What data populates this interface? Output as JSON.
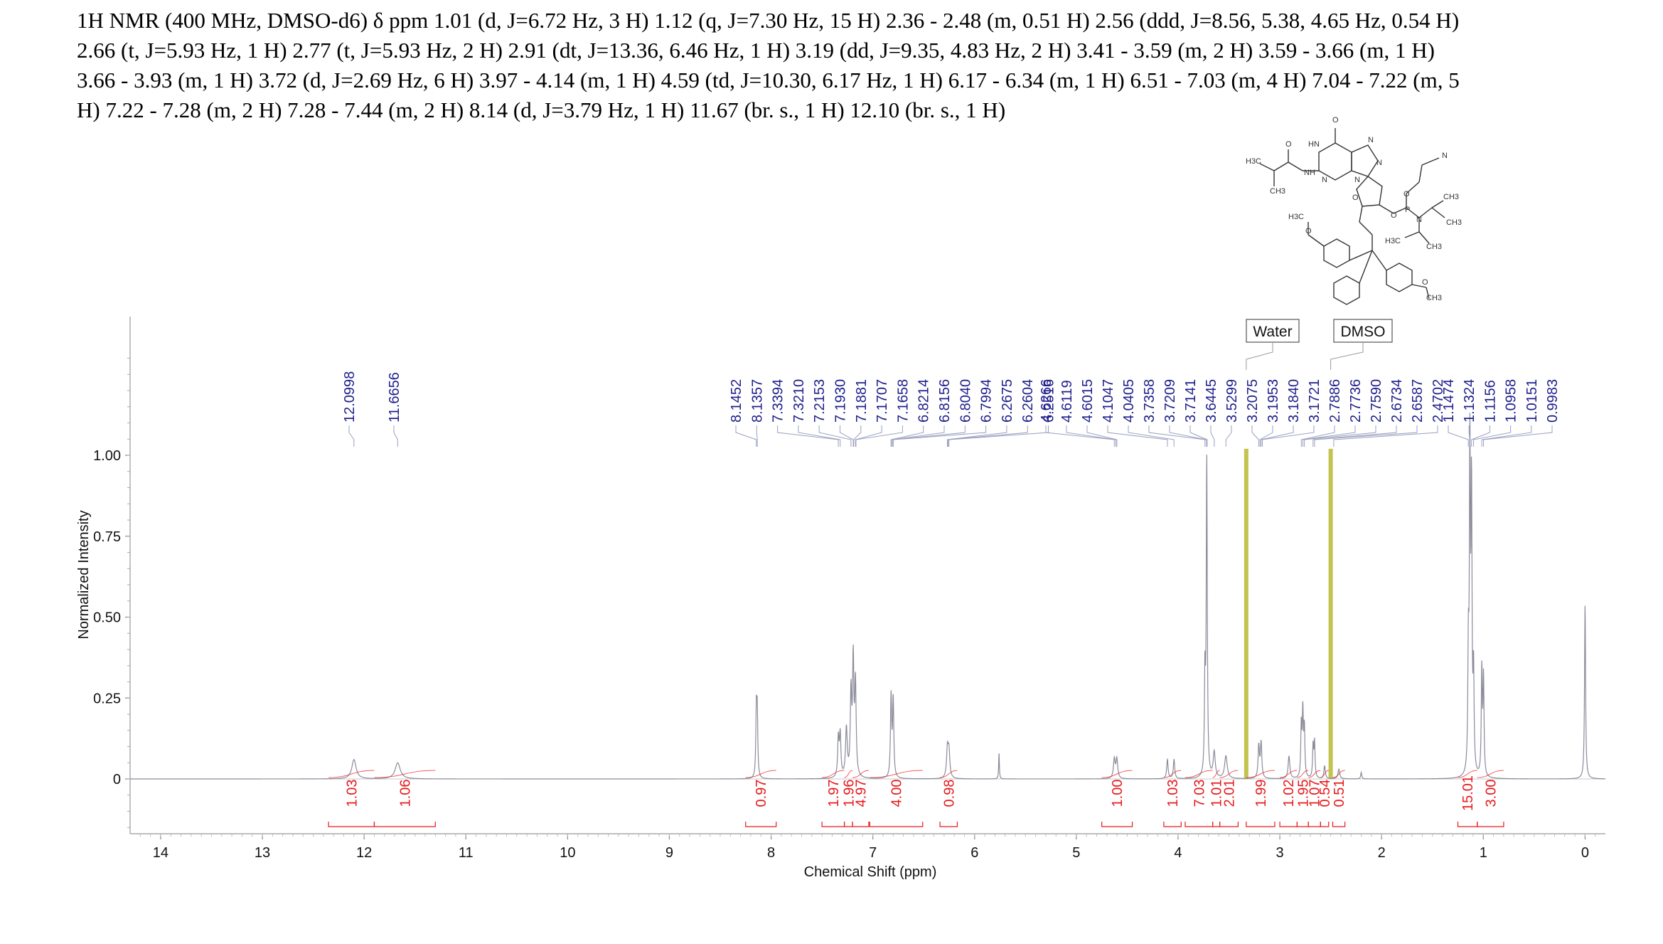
{
  "header": {
    "lines": [
      "1H NMR (400 MHz, DMSO-d6) δ ppm 1.01 (d, J=6.72 Hz, 3 H) 1.12 (q, J=7.30 Hz, 15 H) 2.36 - 2.48 (m, 0.51 H) 2.56 (ddd, J=8.56, 5.38, 4.65 Hz, 0.54 H)",
      "2.66 (t, J=5.93 Hz, 1 H) 2.77 (t, J=5.93 Hz, 2 H) 2.91 (dt, J=13.36, 6.46 Hz, 1 H) 3.19 (dd, J=9.35, 4.83 Hz, 2 H) 3.41 - 3.59 (m, 2 H) 3.59 - 3.66 (m, 1 H)",
      "3.66 - 3.93 (m, 1 H) 3.72 (d, J=2.69 Hz, 6 H) 3.97 - 4.14 (m, 1 H) 4.59 (td, J=10.30, 6.17 Hz, 1 H) 6.17 - 6.34 (m, 1 H) 6.51 - 7.03 (m, 4 H) 7.04 - 7.22 (m, 5",
      "H) 7.22 - 7.28 (m, 2 H) 7.28 - 7.44 (m, 2 H) 8.14 (d, J=3.79 Hz, 1 H) 11.67 (br. s., 1 H) 12.10 (br. s., 1 H)"
    ]
  },
  "structure": {
    "labels": [
      "O",
      "HN",
      "N",
      "N",
      "N",
      "N",
      "H3C",
      "O",
      "NH",
      "CH3",
      "O",
      "O",
      "P",
      "O",
      "N",
      "CH3",
      "CH3",
      "H3C",
      "CH3",
      "H3C",
      "O",
      "O",
      "CH3",
      "N"
    ]
  },
  "solvent_labels": {
    "water": "Water",
    "dmso": "DMSO"
  },
  "colors": {
    "spectrum": "#8a8a9a",
    "peak_labels": "#1f1f8c",
    "integrals": "#e8191c",
    "solvent_lines": "#b8b830"
  },
  "chart_data": {
    "type": "line",
    "title": "",
    "xlabel": "Chemical Shift (ppm)",
    "ylabel": "Normalized Intensity",
    "xlim": [
      14.3,
      -0.2
    ],
    "x_reversed": true,
    "ylim": [
      -0.18,
      1.42
    ],
    "x_ticks": [
      14,
      13,
      12,
      11,
      10,
      9,
      8,
      7,
      6,
      5,
      4,
      3,
      2,
      1,
      0
    ],
    "y_ticks": [
      0,
      0.25,
      0.5,
      0.75,
      1.0
    ],
    "y_tick_labels": [
      "0",
      "0.25",
      "0.50",
      "0.75",
      "1.00"
    ],
    "peak_labels_upfield_group": [
      "4.6266",
      "4.6119",
      "4.6015",
      "4.1047",
      "4.0405",
      "3.7358",
      "3.7209",
      "3.7141",
      "3.6445",
      "3.5299",
      "3.2075",
      "3.1953",
      "3.1840",
      "3.1721",
      "2.7886",
      "2.7736",
      "2.7590",
      "2.6734",
      "2.6587",
      "2.4702"
    ],
    "peak_labels": [
      {
        "group": "a",
        "text": "12.0998",
        "ppm": 12.1
      },
      {
        "group": "a",
        "text": "11.6656",
        "ppm": 11.67
      },
      {
        "group": "b",
        "text": "8.1452",
        "ppm": 8.1452
      },
      {
        "group": "b",
        "text": "8.1357",
        "ppm": 8.1357
      },
      {
        "group": "b",
        "text": "7.3394",
        "ppm": 7.3394
      },
      {
        "group": "b",
        "text": "7.3210",
        "ppm": 7.321
      },
      {
        "group": "b",
        "text": "7.2153",
        "ppm": 7.2153
      },
      {
        "group": "b",
        "text": "7.1930",
        "ppm": 7.193
      },
      {
        "group": "b",
        "text": "7.1881",
        "ppm": 7.1881
      },
      {
        "group": "b",
        "text": "7.1707",
        "ppm": 7.1707
      },
      {
        "group": "b",
        "text": "7.1658",
        "ppm": 7.1658
      },
      {
        "group": "b",
        "text": "6.8214",
        "ppm": 6.8214
      },
      {
        "group": "b",
        "text": "6.8156",
        "ppm": 6.8156
      },
      {
        "group": "b",
        "text": "6.8040",
        "ppm": 6.804
      },
      {
        "group": "b",
        "text": "6.7994",
        "ppm": 6.7994
      },
      {
        "group": "b",
        "text": "6.2675",
        "ppm": 6.2675
      },
      {
        "group": "b",
        "text": "6.2604",
        "ppm": 6.2604
      },
      {
        "group": "b",
        "text": "6.2516",
        "ppm": 6.2516
      },
      {
        "group": "c",
        "text": "4.6266",
        "ppm": 4.6266
      },
      {
        "group": "c",
        "text": "4.6119",
        "ppm": 4.6119
      },
      {
        "group": "c",
        "text": "4.6015",
        "ppm": 4.6015
      },
      {
        "group": "c",
        "text": "4.1047",
        "ppm": 4.1047
      },
      {
        "group": "c",
        "text": "4.0405",
        "ppm": 4.0405
      },
      {
        "group": "c",
        "text": "3.7358",
        "ppm": 3.7358
      },
      {
        "group": "c",
        "text": "3.7209",
        "ppm": 3.7209
      },
      {
        "group": "c",
        "text": "3.7141",
        "ppm": 3.7141
      },
      {
        "group": "c",
        "text": "3.6445",
        "ppm": 3.6445
      },
      {
        "group": "c",
        "text": "3.5299",
        "ppm": 3.5299
      },
      {
        "group": "c",
        "text": "3.2075",
        "ppm": 3.2075
      },
      {
        "group": "c",
        "text": "3.1953",
        "ppm": 3.1953
      },
      {
        "group": "c",
        "text": "3.1840",
        "ppm": 3.184
      },
      {
        "group": "c",
        "text": "3.1721",
        "ppm": 3.1721
      },
      {
        "group": "c",
        "text": "2.7886",
        "ppm": 2.7886
      },
      {
        "group": "c",
        "text": "2.7736",
        "ppm": 2.7736
      },
      {
        "group": "c",
        "text": "2.7590",
        "ppm": 2.759
      },
      {
        "group": "c",
        "text": "2.6734",
        "ppm": 2.6734
      },
      {
        "group": "c",
        "text": "2.6587",
        "ppm": 2.6587
      },
      {
        "group": "c",
        "text": "2.4702",
        "ppm": 2.4702
      },
      {
        "group": "d",
        "text": "1.1474",
        "ppm": 1.1474
      },
      {
        "group": "d",
        "text": "1.1324",
        "ppm": 1.1324
      },
      {
        "group": "d",
        "text": "1.1156",
        "ppm": 1.1156
      },
      {
        "group": "d",
        "text": "1.0958",
        "ppm": 1.0958
      },
      {
        "group": "d",
        "text": "1.0151",
        "ppm": 1.0151
      },
      {
        "group": "d",
        "text": "0.9983",
        "ppm": 0.9983
      }
    ],
    "integrals": [
      {
        "value": "1.03",
        "from": 12.35,
        "to": 11.9
      },
      {
        "value": "1.06",
        "from": 11.9,
        "to": 11.3
      },
      {
        "value": "0.97",
        "from": 8.25,
        "to": 7.95
      },
      {
        "value": "1.97",
        "from": 7.5,
        "to": 7.28
      },
      {
        "value": "1.96",
        "from": 7.28,
        "to": 7.2
      },
      {
        "value": "4.97",
        "from": 7.2,
        "to": 7.04
      },
      {
        "value": "4.00",
        "from": 7.03,
        "to": 6.51
      },
      {
        "value": "0.98",
        "from": 6.34,
        "to": 6.17
      },
      {
        "value": "1.00",
        "from": 4.75,
        "to": 4.45
      },
      {
        "value": "1.03",
        "from": 4.14,
        "to": 3.97
      },
      {
        "value": "7.03",
        "from": 3.93,
        "to": 3.66
      },
      {
        "value": "1.01",
        "from": 3.66,
        "to": 3.59
      },
      {
        "value": "2.01",
        "from": 3.59,
        "to": 3.41
      },
      {
        "value": "1.99",
        "from": 3.33,
        "to": 3.05
      },
      {
        "value": "1.02",
        "from": 3.0,
        "to": 2.83
      },
      {
        "value": "1.95",
        "from": 2.83,
        "to": 2.72
      },
      {
        "value": "1.07",
        "from": 2.72,
        "to": 2.6
      },
      {
        "value": "0.54",
        "from": 2.6,
        "to": 2.52
      },
      {
        "value": "0.51",
        "from": 2.48,
        "to": 2.36
      },
      {
        "value": "15.01",
        "from": 1.25,
        "to": 1.06
      },
      {
        "value": "3.00",
        "from": 1.06,
        "to": 0.8
      }
    ],
    "solvent_peaks": [
      {
        "name": "Water",
        "ppm": 3.33
      },
      {
        "name": "DMSO",
        "ppm": 2.5
      }
    ],
    "peaks": [
      {
        "ppm": 12.1,
        "height": 0.06,
        "width": 0.025
      },
      {
        "ppm": 11.67,
        "height": 0.05,
        "width": 0.03
      },
      {
        "ppm": 8.145,
        "height": 0.2,
        "width": 0.006
      },
      {
        "ppm": 8.136,
        "height": 0.19,
        "width": 0.006
      },
      {
        "ppm": 7.339,
        "height": 0.12,
        "width": 0.008
      },
      {
        "ppm": 7.321,
        "height": 0.13,
        "width": 0.008
      },
      {
        "ppm": 7.26,
        "height": 0.15,
        "width": 0.01
      },
      {
        "ppm": 7.215,
        "height": 0.25,
        "width": 0.008
      },
      {
        "ppm": 7.193,
        "height": 0.35,
        "width": 0.008
      },
      {
        "ppm": 7.171,
        "height": 0.28,
        "width": 0.008
      },
      {
        "ppm": 6.821,
        "height": 0.25,
        "width": 0.007
      },
      {
        "ppm": 6.8,
        "height": 0.24,
        "width": 0.007
      },
      {
        "ppm": 6.267,
        "height": 0.09,
        "width": 0.01
      },
      {
        "ppm": 6.252,
        "height": 0.08,
        "width": 0.01
      },
      {
        "ppm": 5.76,
        "height": 0.08,
        "width": 0.004
      },
      {
        "ppm": 4.627,
        "height": 0.06,
        "width": 0.01
      },
      {
        "ppm": 4.602,
        "height": 0.06,
        "width": 0.01
      },
      {
        "ppm": 4.105,
        "height": 0.06,
        "width": 0.008
      },
      {
        "ppm": 4.04,
        "height": 0.06,
        "width": 0.008
      },
      {
        "ppm": 3.736,
        "height": 0.3,
        "width": 0.006
      },
      {
        "ppm": 3.718,
        "height": 0.98,
        "width": 0.006
      },
      {
        "ppm": 3.645,
        "height": 0.08,
        "width": 0.012
      },
      {
        "ppm": 3.53,
        "height": 0.07,
        "width": 0.015
      },
      {
        "ppm": 3.207,
        "height": 0.1,
        "width": 0.008
      },
      {
        "ppm": 3.184,
        "height": 0.11,
        "width": 0.008
      },
      {
        "ppm": 2.91,
        "height": 0.07,
        "width": 0.01
      },
      {
        "ppm": 2.789,
        "height": 0.16,
        "width": 0.006
      },
      {
        "ppm": 2.774,
        "height": 0.2,
        "width": 0.006
      },
      {
        "ppm": 2.759,
        "height": 0.15,
        "width": 0.006
      },
      {
        "ppm": 2.673,
        "height": 0.1,
        "width": 0.006
      },
      {
        "ppm": 2.659,
        "height": 0.11,
        "width": 0.006
      },
      {
        "ppm": 2.56,
        "height": 0.04,
        "width": 0.008
      },
      {
        "ppm": 2.42,
        "height": 0.03,
        "width": 0.01
      },
      {
        "ppm": 2.2,
        "height": 0.02,
        "width": 0.006
      },
      {
        "ppm": 1.147,
        "height": 0.35,
        "width": 0.006
      },
      {
        "ppm": 1.132,
        "height": 0.97,
        "width": 0.006
      },
      {
        "ppm": 1.116,
        "height": 0.85,
        "width": 0.006
      },
      {
        "ppm": 1.096,
        "height": 0.3,
        "width": 0.006
      },
      {
        "ppm": 1.015,
        "height": 0.33,
        "width": 0.006
      },
      {
        "ppm": 0.998,
        "height": 0.3,
        "width": 0.006
      },
      {
        "ppm": 0.0,
        "height": 0.54,
        "width": 0.006
      }
    ]
  }
}
